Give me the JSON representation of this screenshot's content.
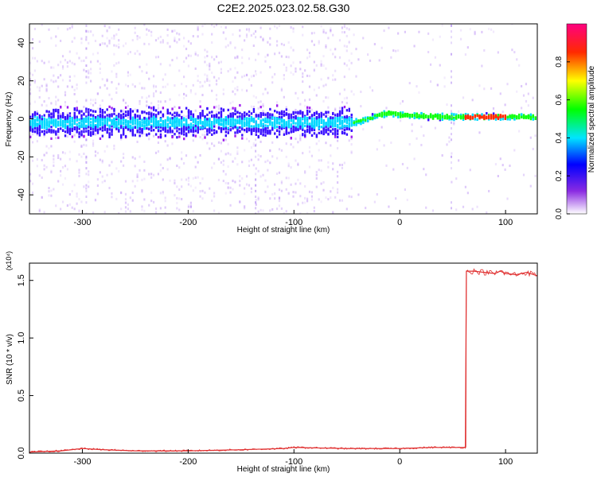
{
  "title": "C2E2.2025.023.02.58.G30",
  "chart_data": [
    {
      "type": "heatmap",
      "xlabel": "Height of straight line (km)",
      "ylabel": "Frequency (Hz)",
      "xlim": [
        -350,
        130
      ],
      "ylim": [
        -50,
        50
      ],
      "xticks": [
        -300,
        -200,
        -100,
        0,
        100
      ],
      "yticks": [
        -40,
        -20,
        0,
        20,
        40
      ],
      "colorbar": {
        "label": "Normalized spectral amplitude",
        "range": [
          0,
          1
        ],
        "ticks": [
          "0.0",
          "0.2",
          "0.4",
          "0.6",
          "0.8"
        ],
        "tick_values": [
          0,
          0.2,
          0.4,
          0.6,
          0.8
        ],
        "colormap": [
          "#e9dcff",
          "#a020f0",
          "#3a10ff",
          "#00d8ff",
          "#10ff10",
          "#ffff00",
          "#ff2a00",
          "#ff0080"
        ]
      },
      "ridge": {
        "x": [
          -45,
          -30,
          -20,
          -10,
          0,
          20,
          40,
          60,
          80,
          100,
          120
        ],
        "y": [
          -2,
          0,
          2,
          3,
          2,
          1.5,
          1,
          1,
          1,
          1,
          1
        ]
      },
      "high_amplitude_segments": [
        [
          60,
          100
        ]
      ],
      "vertical_streaks_x": [
        -297,
        -137,
        48
      ]
    },
    {
      "type": "line",
      "xlabel": "Height of straight line (km)",
      "ylabel": "SNR (10 * v/v)",
      "y_multiplier": "(x10⁴)",
      "xlim": [
        -350,
        130
      ],
      "ylim": [
        0,
        1.65
      ],
      "xticks": [
        -300,
        -200,
        -100,
        0,
        100
      ],
      "yticks": [
        "0.0",
        "0.5",
        "1.0",
        "1.5"
      ],
      "ytick_values": [
        0,
        0.5,
        1.0,
        1.5
      ],
      "color": "#e03030",
      "series": [
        {
          "x": [
            -350,
            -320,
            -300,
            -280,
            -250,
            -200,
            -150,
            -110,
            -100,
            -50,
            0,
            30,
            60,
            62,
            63,
            70,
            80,
            90,
            95,
            100,
            110,
            120,
            130
          ],
          "y": [
            0.01,
            0.02,
            0.04,
            0.03,
            0.02,
            0.02,
            0.03,
            0.04,
            0.05,
            0.04,
            0.04,
            0.05,
            0.05,
            0.05,
            1.58,
            1.58,
            1.57,
            1.56,
            1.58,
            1.56,
            1.55,
            1.57,
            1.54
          ]
        }
      ]
    }
  ]
}
